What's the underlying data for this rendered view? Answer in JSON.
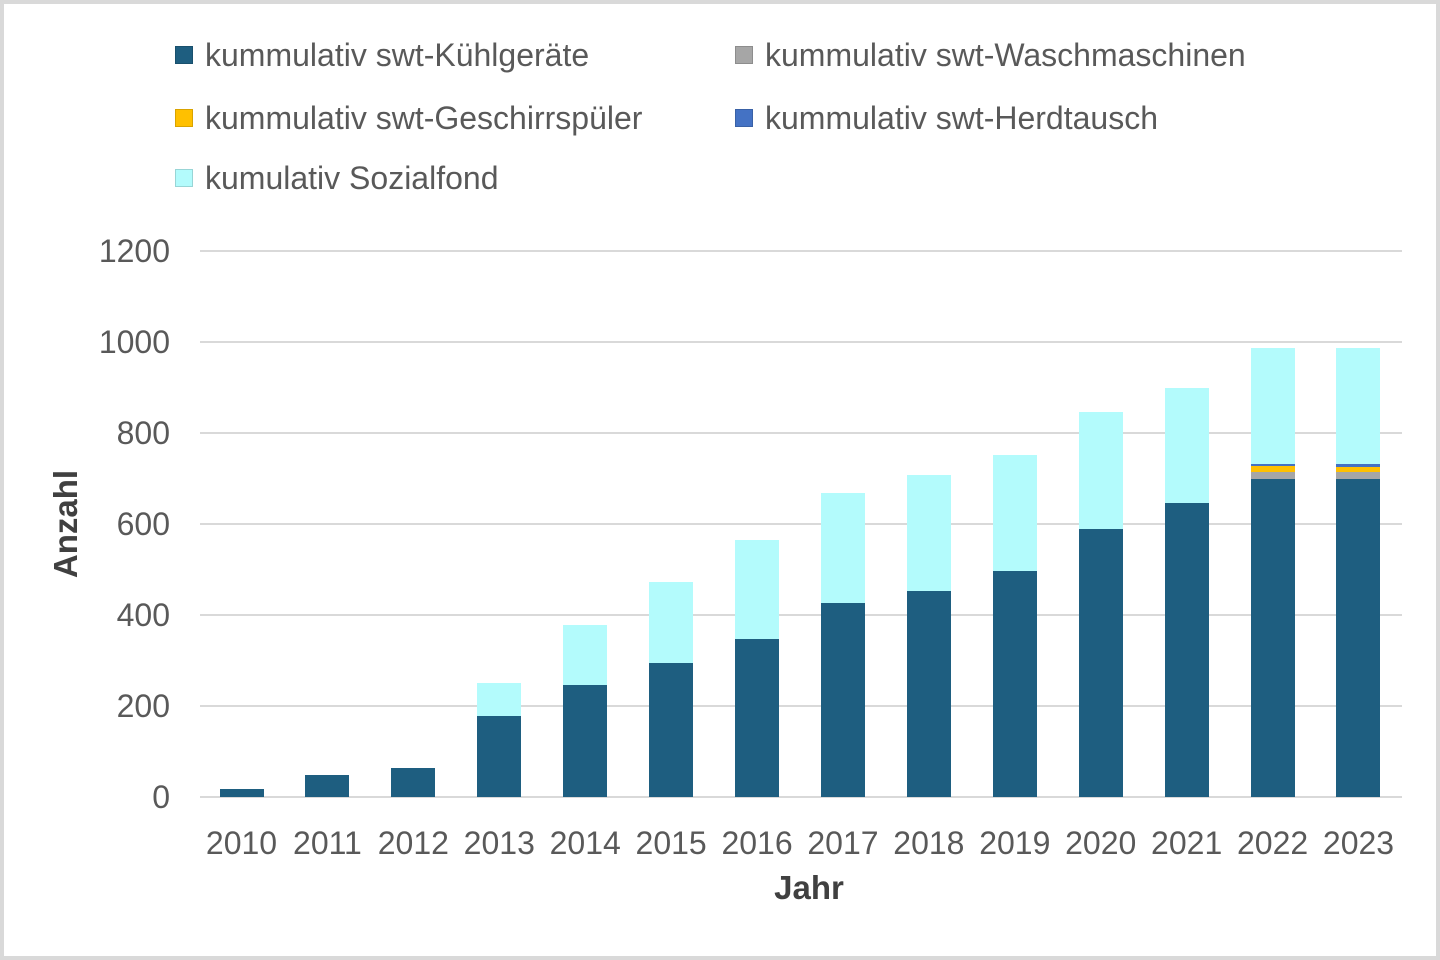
{
  "chart_data": {
    "type": "bar",
    "stacked": true,
    "title": "",
    "xlabel": "Jahr",
    "ylabel": "Anzahl",
    "ylim": [
      0,
      1200
    ],
    "yticks": [
      0,
      200,
      400,
      600,
      800,
      1000,
      1200
    ],
    "grid": true,
    "legend_position": "top",
    "categories": [
      "2010",
      "2011",
      "2012",
      "2013",
      "2014",
      "2015",
      "2016",
      "2017",
      "2018",
      "2019",
      "2020",
      "2021",
      "2022",
      "2023"
    ],
    "series": [
      {
        "name": "kummulativ swt-Kühlgeräte",
        "color": "#1e5e80",
        "values": [
          18,
          48,
          64,
          178,
          247,
          294,
          347,
          426,
          452,
          497,
          589,
          647,
          700,
          699
        ]
      },
      {
        "name": "kummulativ swt-Waschmaschinen",
        "color": "#a6a6a6",
        "values": [
          0,
          0,
          0,
          0,
          0,
          0,
          0,
          0,
          0,
          0,
          0,
          0,
          15,
          15
        ]
      },
      {
        "name": "kummulativ swt-Geschirrspüler",
        "color": "#ffc000",
        "values": [
          0,
          0,
          0,
          0,
          0,
          0,
          0,
          0,
          0,
          0,
          0,
          0,
          12,
          12
        ]
      },
      {
        "name": "kummulativ swt-Herdtausch",
        "color": "#4472c4",
        "values": [
          0,
          0,
          0,
          0,
          0,
          0,
          0,
          0,
          0,
          0,
          0,
          0,
          5,
          5
        ]
      },
      {
        "name": "kumulativ Sozialfond",
        "color": "#b3fbfc",
        "values": [
          0,
          0,
          0,
          73,
          132,
          178,
          218,
          243,
          255,
          255,
          257,
          253,
          255,
          256
        ]
      }
    ],
    "colors": {
      "grid": "#d9d9d9",
      "frame_border": "#d9d9d9",
      "tick_text": "#595959",
      "axis_title_text": "#404040",
      "background": "#ffffff"
    }
  }
}
